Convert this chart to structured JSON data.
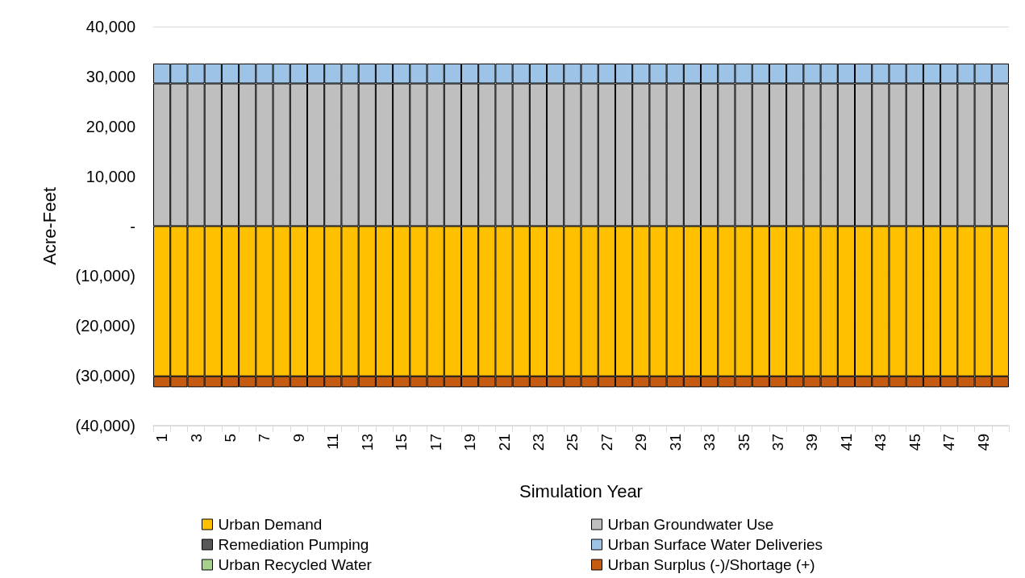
{
  "chart_data": {
    "type": "bar",
    "stacked": true,
    "xlabel": "Simulation Year",
    "ylabel": "Acre-Feet",
    "categories": [
      "1",
      null,
      "3",
      null,
      "5",
      null,
      "7",
      null,
      "9",
      null,
      "11",
      null,
      "13",
      null,
      "15",
      null,
      "17",
      null,
      "19",
      null,
      "21",
      null,
      "23",
      null,
      "25",
      null,
      "27",
      null,
      "29",
      null,
      "31",
      null,
      "33",
      null,
      "35",
      null,
      "37",
      null,
      "39",
      null,
      "41",
      null,
      "43",
      null,
      "45",
      null,
      "47",
      null,
      "49",
      null
    ],
    "series": [
      {
        "name": "Urban Demand",
        "color": "#ffc000",
        "values": [
          -30100,
          -30100,
          -30100,
          -30100,
          -30100,
          -30100,
          -30100,
          -30100,
          -30100,
          -30100,
          -30100,
          -30100,
          -30100,
          -30100,
          -30100,
          -30100,
          -30100,
          -30100,
          -30100,
          -30100,
          -30100,
          -30100,
          -30100,
          -30100,
          -30100,
          -30100,
          -30100,
          -30100,
          -30100,
          -30100,
          -30100,
          -30100,
          -30100,
          -30100,
          -30100,
          -30100,
          -30100,
          -30100,
          -30100,
          -30100,
          -30100,
          -30100,
          -30100,
          -30100,
          -30100,
          -30100,
          -30100,
          -30100,
          -30100,
          -30100
        ]
      },
      {
        "name": "Urban Groundwater Use",
        "color": "#bfbfbf",
        "values": [
          28600,
          28600,
          28600,
          28600,
          28600,
          28600,
          28600,
          28600,
          28600,
          28600,
          28600,
          28600,
          28600,
          28600,
          28600,
          28600,
          28600,
          28600,
          28600,
          28600,
          28600,
          28600,
          28600,
          28600,
          28600,
          28600,
          28600,
          28600,
          28600,
          28600,
          28600,
          28600,
          28600,
          28600,
          28600,
          28600,
          28600,
          28600,
          28600,
          28600,
          28600,
          28600,
          28600,
          28600,
          28600,
          28600,
          28600,
          28600,
          28600,
          28600
        ]
      },
      {
        "name": "Remediation Pumping",
        "color": "#595959",
        "values": [
          0,
          0,
          0,
          0,
          0,
          0,
          0,
          0,
          0,
          0,
          0,
          0,
          0,
          0,
          0,
          0,
          0,
          0,
          0,
          0,
          0,
          0,
          0,
          0,
          0,
          0,
          0,
          0,
          0,
          0,
          0,
          0,
          0,
          0,
          0,
          0,
          0,
          0,
          0,
          0,
          0,
          0,
          0,
          0,
          0,
          0,
          0,
          0,
          0,
          0
        ]
      },
      {
        "name": "Urban Surface Water Deliveries",
        "color": "#9dc3e6",
        "values": [
          4000,
          4000,
          4000,
          4000,
          4000,
          4000,
          4000,
          4000,
          4000,
          4000,
          4000,
          4000,
          4000,
          4000,
          4000,
          4000,
          4000,
          4000,
          4000,
          4000,
          4000,
          4000,
          4000,
          4000,
          4000,
          4000,
          4000,
          4000,
          4000,
          4000,
          4000,
          4000,
          4000,
          4000,
          4000,
          4000,
          4000,
          4000,
          4000,
          4000,
          4000,
          4000,
          4000,
          4000,
          4000,
          4000,
          4000,
          4000,
          4000,
          4000
        ]
      },
      {
        "name": "Urban Recycled Water",
        "color": "#a9d18e",
        "values": [
          0,
          0,
          0,
          0,
          0,
          0,
          0,
          0,
          0,
          0,
          0,
          0,
          0,
          0,
          0,
          0,
          0,
          0,
          0,
          0,
          0,
          0,
          0,
          0,
          0,
          0,
          0,
          0,
          0,
          0,
          0,
          0,
          0,
          0,
          0,
          0,
          0,
          0,
          0,
          0,
          0,
          0,
          0,
          0,
          0,
          0,
          0,
          0,
          0,
          0
        ]
      },
      {
        "name": "Urban Surplus (-)/Shortage (+)",
        "color": "#c55a11",
        "values": [
          -2200,
          -2200,
          -2200,
          -2200,
          -2200,
          -2200,
          -2200,
          -2200,
          -2200,
          -2200,
          -2200,
          -2200,
          -2200,
          -2200,
          -2200,
          -2200,
          -2200,
          -2200,
          -2200,
          -2200,
          -2200,
          -2200,
          -2200,
          -2200,
          -2200,
          -2200,
          -2200,
          -2200,
          -2200,
          -2200,
          -2200,
          -2200,
          -2200,
          -2200,
          -2200,
          -2200,
          -2200,
          -2200,
          -2200,
          -2200,
          -2200,
          -2200,
          -2200,
          -2200,
          -2200,
          -2200,
          -2200,
          -2200,
          -2200,
          -2200
        ]
      }
    ],
    "ylim": [
      -40000,
      40000
    ],
    "yticks": [
      {
        "value": -40000,
        "label": "(40,000)"
      },
      {
        "value": -30000,
        "label": "(30,000)"
      },
      {
        "value": -20000,
        "label": "(20,000)"
      },
      {
        "value": -10000,
        "label": "(10,000)"
      },
      {
        "value": 0,
        "label": "-"
      },
      {
        "value": 10000,
        "label": "10,000"
      },
      {
        "value": 20000,
        "label": "20,000"
      },
      {
        "value": 30000,
        "label": "30,000"
      },
      {
        "value": 40000,
        "label": "40,000"
      }
    ],
    "grid": "y",
    "legend": "bottom"
  }
}
